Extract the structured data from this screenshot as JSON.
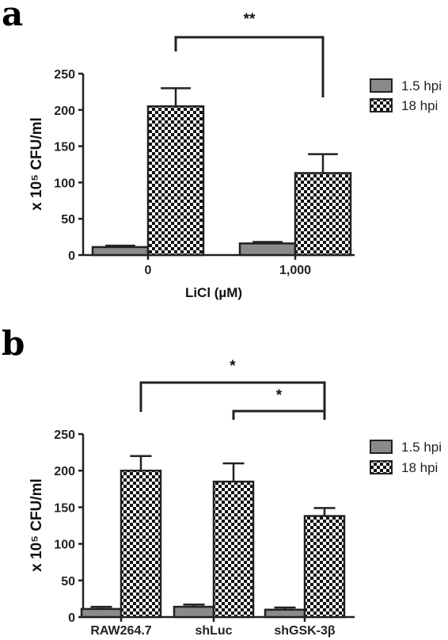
{
  "chart_data": [
    {
      "type": "bar",
      "panel_label": "a",
      "categories": [
        "0",
        "1,000"
      ],
      "series": [
        {
          "name": "1.5 hpi",
          "values": [
            11,
            16
          ],
          "errors": [
            2,
            2
          ],
          "fill": "#8a8a8a"
        },
        {
          "name": "18 hpi",
          "values": [
            205,
            113
          ],
          "errors": [
            25,
            26
          ],
          "fill": "checkered"
        }
      ],
      "xlabel": "LiCl (µM)",
      "ylabel": "x 10⁵ CFU/ml",
      "ylim": [
        0,
        250
      ],
      "yticks": [
        "0",
        "50",
        "100",
        "150",
        "200",
        "250"
      ],
      "legend_position": "top-right",
      "grid": false,
      "significance": [
        {
          "label": "**",
          "from": "0",
          "to": "1,000",
          "series": "18 hpi"
        }
      ]
    },
    {
      "type": "bar",
      "panel_label": "b",
      "categories": [
        "RAW264.7",
        "shLuc",
        "shGSK-3β"
      ],
      "series": [
        {
          "name": "1.5 hpi",
          "values": [
            11,
            14,
            10
          ],
          "errors": [
            3,
            3,
            3
          ],
          "fill": "#8a8a8a"
        },
        {
          "name": "18 hpi",
          "values": [
            200,
            185,
            138
          ],
          "errors": [
            20,
            25,
            11
          ],
          "fill": "checkered"
        }
      ],
      "xlabel": "",
      "ylabel": "x 10⁵ CFU/ml",
      "ylim": [
        0,
        250
      ],
      "yticks": [
        "0",
        "50",
        "100",
        "150",
        "200",
        "250"
      ],
      "legend_position": "top-right",
      "grid": false,
      "significance": [
        {
          "label": "*",
          "from": "RAW264.7",
          "to": "shGSK-3β",
          "series": "18 hpi"
        },
        {
          "label": "*",
          "from": "shLuc",
          "to": "shGSK-3β",
          "series": "18 hpi"
        }
      ]
    }
  ]
}
